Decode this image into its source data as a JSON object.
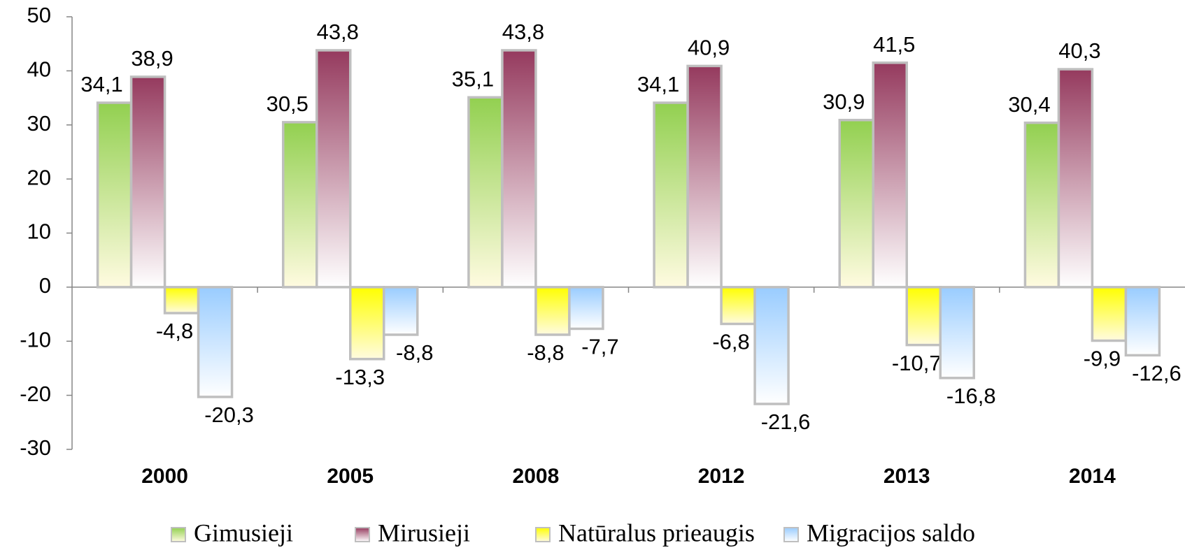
{
  "chart_data": {
    "type": "bar",
    "categories": [
      "2000",
      "2005",
      "2008",
      "2012",
      "2013",
      "2014"
    ],
    "series": [
      {
        "name": "Gimusieji",
        "color": "#92d050",
        "values": [
          34.1,
          30.5,
          35.1,
          34.1,
          30.9,
          30.4
        ],
        "value_labels": [
          "34,1",
          "30,5",
          "35,1",
          "34,1",
          "30,9",
          "30,4"
        ]
      },
      {
        "name": "Mirusieji",
        "color": "#953a5e",
        "values": [
          38.9,
          43.8,
          43.8,
          40.9,
          41.5,
          40.3
        ],
        "value_labels": [
          "38,9",
          "43,8",
          "43,8",
          "40,9",
          "41,5",
          "40,3"
        ]
      },
      {
        "name": "Natūralus prieaugis",
        "color": "#ffff00",
        "values": [
          -4.8,
          -13.3,
          -8.8,
          -6.8,
          -10.7,
          -9.9
        ],
        "value_labels": [
          "-4,8",
          "-13,3",
          "-8,8",
          "-6,8",
          "-10,7",
          "-9,9"
        ]
      },
      {
        "name": "Migracijos saldo",
        "color": "#99ccff",
        "values": [
          -20.3,
          -8.8,
          -7.7,
          -21.6,
          -16.8,
          -12.6
        ],
        "value_labels": [
          "-20,3",
          "-8,8",
          "-7,7",
          "-21,6",
          "-16,8",
          "-12,6"
        ]
      }
    ],
    "ylim": [
      -30,
      50
    ],
    "yticks": [
      -30,
      -20,
      -10,
      0,
      10,
      20,
      30,
      40,
      50
    ],
    "grid": false,
    "legend": "bottom"
  }
}
